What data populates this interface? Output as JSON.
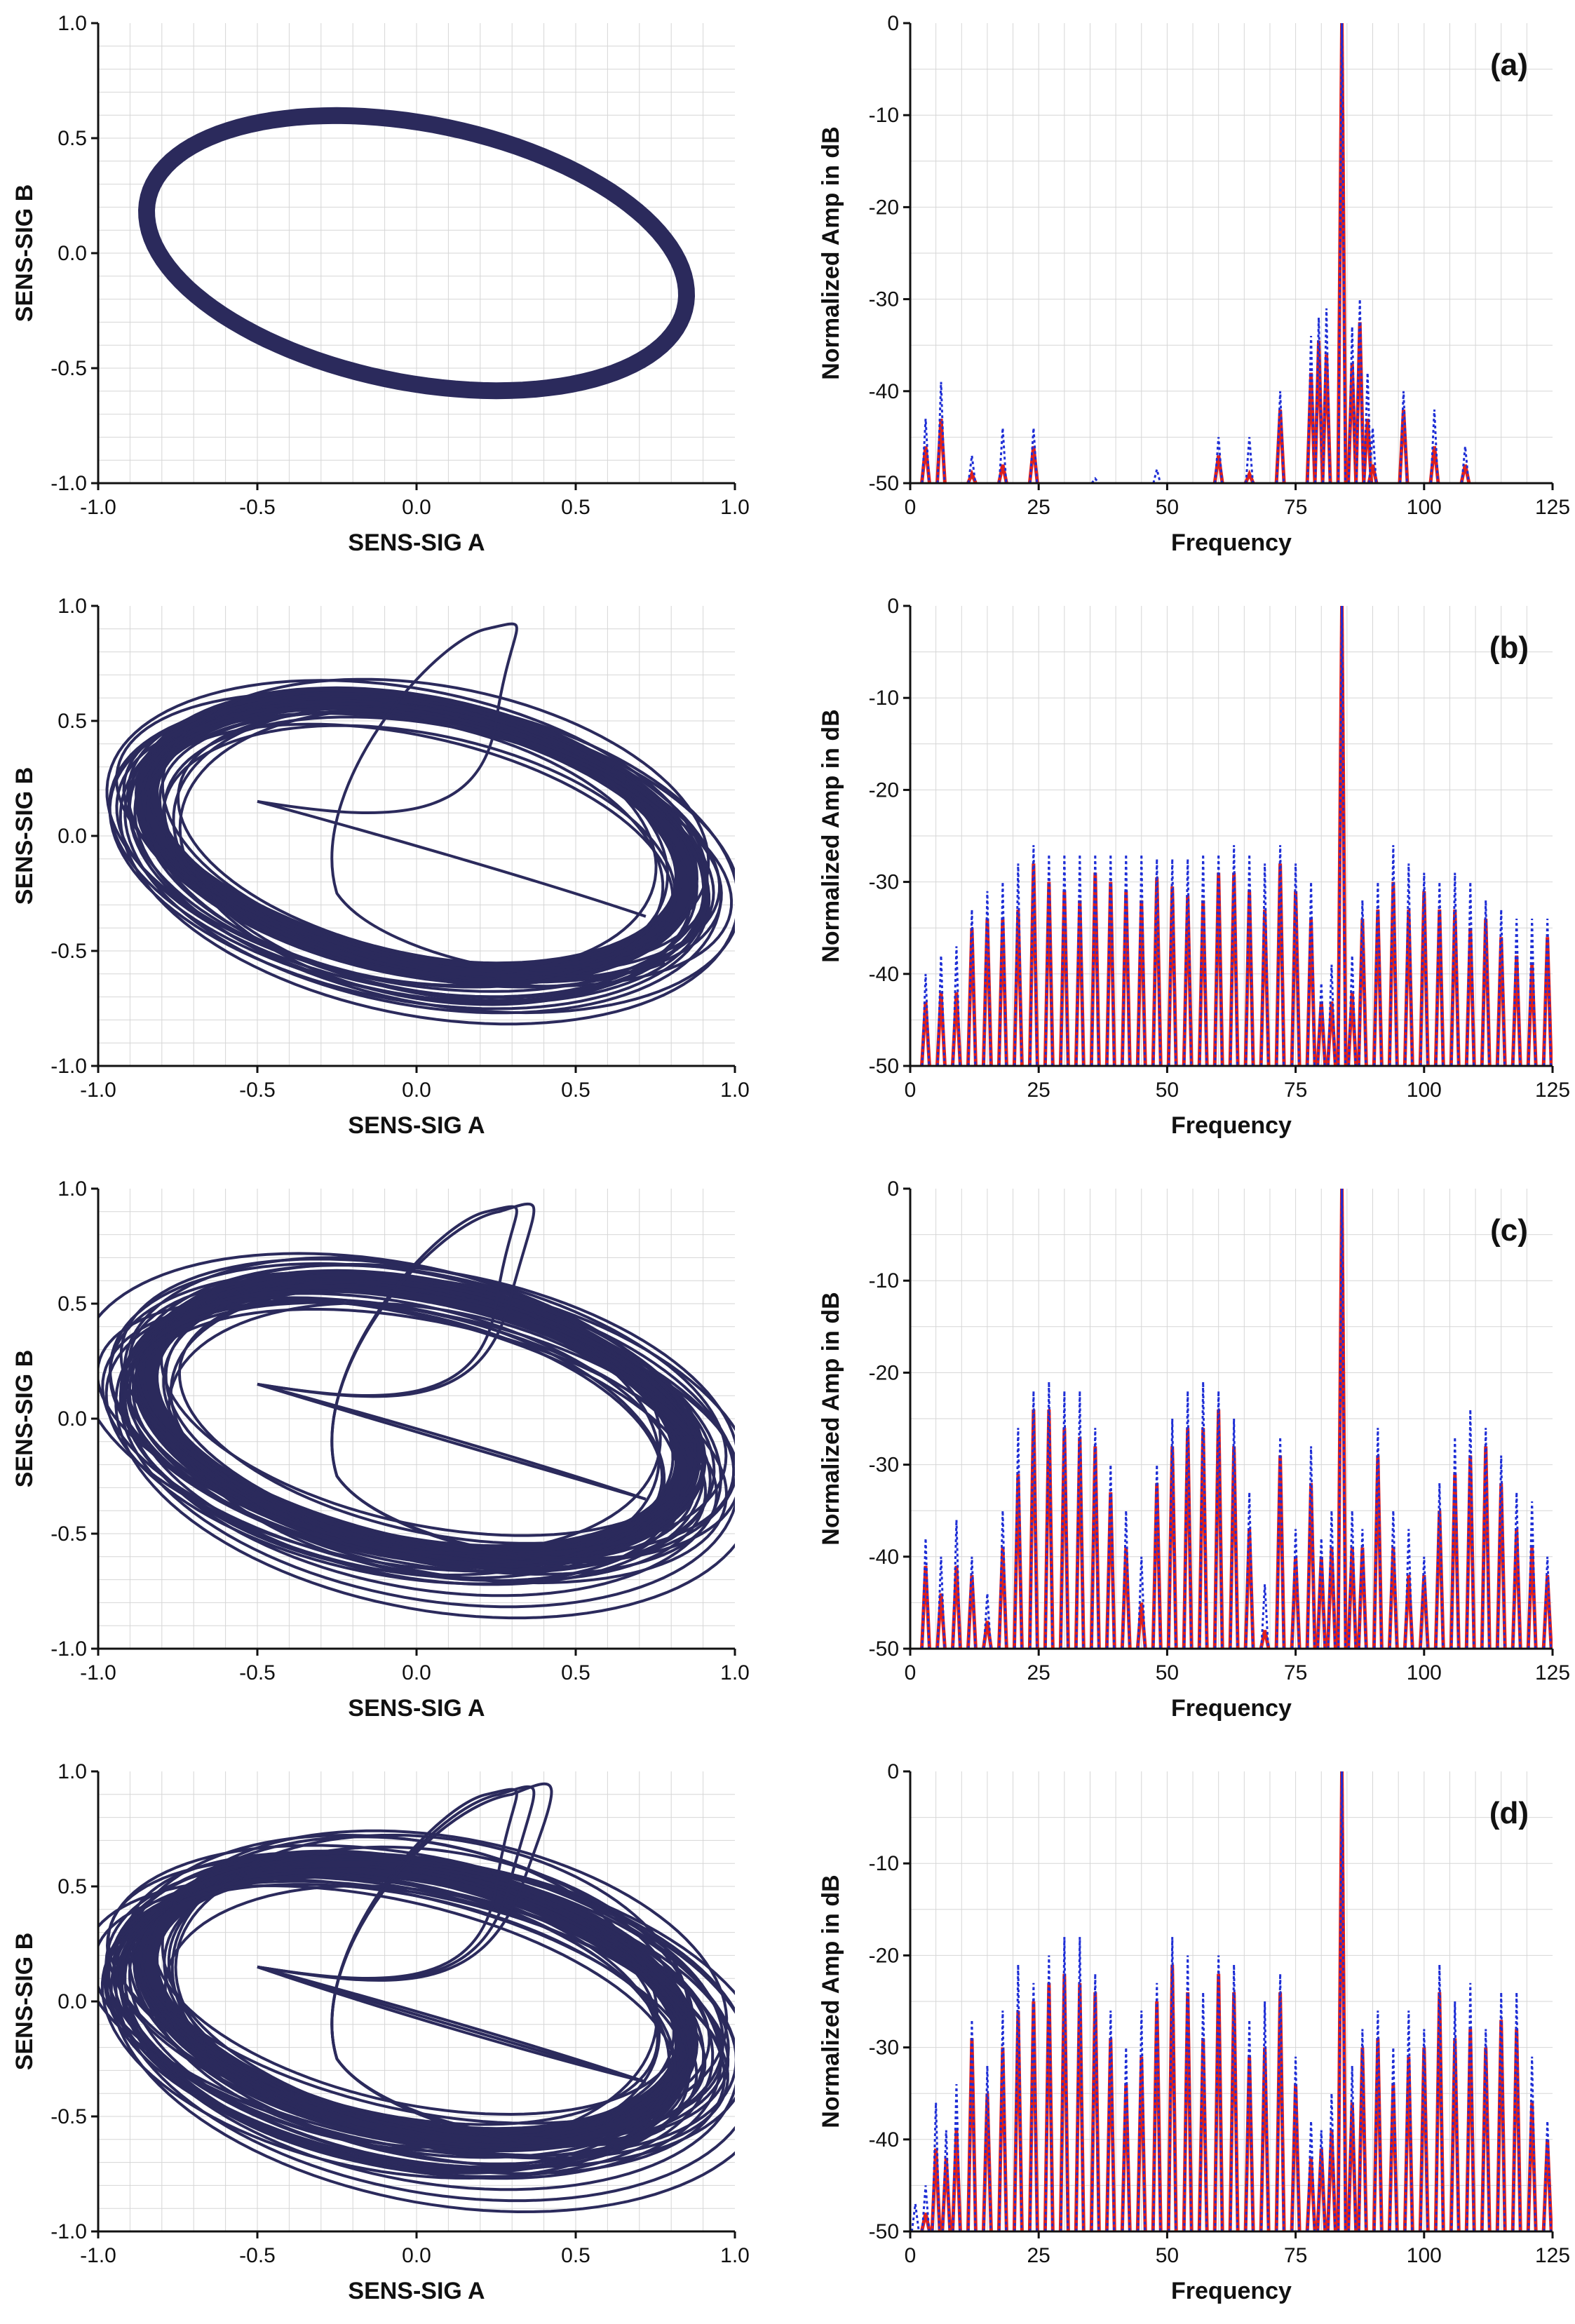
{
  "figure": {
    "description_label": "Phase portraits and normalized spectra"
  },
  "colors": {
    "portrait": "#2b2a5c",
    "spectrum_main": "#e0201c",
    "spectrum_ref": "#1f2fd6",
    "grid": "#d6d6d6",
    "axis": "#111111"
  },
  "chart_data": [
    {
      "type": "phase_portrait",
      "row": 0,
      "xlabel": "SENS-SIG A",
      "ylabel": "SENS-SIG B",
      "xlim": [
        -1.0,
        1.0
      ],
      "ylim": [
        -1.0,
        1.0
      ],
      "xticks": [
        "-1.0",
        "-0.5",
        "0.0",
        "0.5",
        "1.0"
      ],
      "yticks": [
        "-1.0",
        "-0.5",
        "0.0",
        "0.5",
        "1.0"
      ],
      "ellipse": {
        "center": [
          0,
          0
        ],
        "a": 0.88,
        "b": 0.55,
        "angle_deg": -20
      },
      "loop_count": 1,
      "transient": false
    },
    {
      "type": "spectrum",
      "row": 0,
      "label": "(a)",
      "xlabel": "Frequency",
      "ylabel": "Normalized Amp in dB",
      "xlim": [
        0,
        125
      ],
      "ylim": [
        -50,
        0
      ],
      "xticks": [
        "0",
        "25",
        "50",
        "75",
        "100",
        "125"
      ],
      "yticks": [
        "0",
        "-10",
        "-20",
        "-30",
        "-40",
        "-50"
      ],
      "peaks": [
        [
          3,
          -43
        ],
        [
          6,
          -39
        ],
        [
          12,
          -47
        ],
        [
          18,
          -44
        ],
        [
          24,
          -44
        ],
        [
          36,
          -49.5
        ],
        [
          48,
          -48.5
        ],
        [
          60,
          -45
        ],
        [
          66,
          -45
        ],
        [
          72,
          -40
        ],
        [
          78,
          -34
        ],
        [
          79.5,
          -32
        ],
        [
          81,
          -31
        ],
        [
          84,
          0
        ],
        [
          86,
          -33
        ],
        [
          87.5,
          -30
        ],
        [
          89,
          -38
        ],
        [
          90,
          -44
        ],
        [
          96,
          -40
        ],
        [
          102,
          -42
        ],
        [
          108,
          -46
        ]
      ]
    },
    {
      "type": "phase_portrait",
      "row": 1,
      "xlabel": "SENS-SIG A",
      "ylabel": "SENS-SIG B",
      "xlim": [
        -1.0,
        1.0
      ],
      "ylim": [
        -1.0,
        1.0
      ],
      "xticks": [
        "-1.0",
        "-0.5",
        "0.0",
        "0.5",
        "1.0"
      ],
      "yticks": [
        "-1.0",
        "-0.5",
        "0.0",
        "0.5",
        "1.0"
      ],
      "ellipse": {
        "center": [
          0,
          0
        ],
        "a": 0.88,
        "b": 0.55,
        "angle_deg": -20
      },
      "loop_count": 22,
      "transient": true
    },
    {
      "type": "spectrum",
      "row": 1,
      "label": "(b)",
      "xlabel": "Frequency",
      "ylabel": "Normalized Amp in dB",
      "xlim": [
        0,
        125
      ],
      "ylim": [
        -50,
        0
      ],
      "xticks": [
        "0",
        "25",
        "50",
        "75",
        "100",
        "125"
      ],
      "yticks": [
        "0",
        "-10",
        "-20",
        "-30",
        "-40",
        "-50"
      ],
      "peaks": [
        [
          3,
          -40
        ],
        [
          6,
          -38
        ],
        [
          9,
          -37
        ],
        [
          12,
          -33
        ],
        [
          15,
          -31
        ],
        [
          18,
          -30
        ],
        [
          21,
          -28
        ],
        [
          24,
          -26
        ],
        [
          27,
          -27
        ],
        [
          30,
          -27
        ],
        [
          33,
          -27
        ],
        [
          36,
          -27
        ],
        [
          39,
          -27
        ],
        [
          42,
          -27
        ],
        [
          45,
          -27
        ],
        [
          48,
          -27.5
        ],
        [
          51,
          -27.5
        ],
        [
          54,
          -27.5
        ],
        [
          57,
          -27
        ],
        [
          60,
          -27
        ],
        [
          63,
          -26
        ],
        [
          66,
          -27
        ],
        [
          69,
          -28
        ],
        [
          72,
          -26
        ],
        [
          75,
          -28
        ],
        [
          78,
          -30
        ],
        [
          80,
          -41
        ],
        [
          82,
          -39
        ],
        [
          84,
          0
        ],
        [
          86,
          -38
        ],
        [
          88,
          -32
        ],
        [
          91,
          -30
        ],
        [
          94,
          -26
        ],
        [
          97,
          -28
        ],
        [
          100,
          -29
        ],
        [
          103,
          -30
        ],
        [
          106,
          -29
        ],
        [
          109,
          -30
        ],
        [
          112,
          -32
        ],
        [
          115,
          -33
        ],
        [
          118,
          -34
        ],
        [
          121,
          -34
        ],
        [
          124,
          -34
        ]
      ]
    },
    {
      "type": "phase_portrait",
      "row": 2,
      "xlabel": "SENS-SIG A",
      "ylabel": "SENS-SIG B",
      "xlim": [
        -1.0,
        1.0
      ],
      "ylim": [
        -1.0,
        1.0
      ],
      "xticks": [
        "-1.0",
        "-0.5",
        "0.0",
        "0.5",
        "1.0"
      ],
      "yticks": [
        "-1.0",
        "-0.5",
        "0.0",
        "0.5",
        "1.0"
      ],
      "ellipse": {
        "center": [
          0,
          0
        ],
        "a": 0.88,
        "b": 0.55,
        "angle_deg": -20
      },
      "loop_count": 26,
      "transient": true
    },
    {
      "type": "spectrum",
      "row": 2,
      "label": "(c)",
      "xlabel": "Frequency",
      "ylabel": "Normalized Amp in dB",
      "xlim": [
        0,
        125
      ],
      "ylim": [
        -50,
        0
      ],
      "xticks": [
        "0",
        "25",
        "50",
        "75",
        "100",
        "125"
      ],
      "yticks": [
        "0",
        "-10",
        "-20",
        "-30",
        "-40",
        "-50"
      ],
      "peaks": [
        [
          3,
          -38
        ],
        [
          6,
          -40
        ],
        [
          9,
          -36
        ],
        [
          12,
          -40
        ],
        [
          15,
          -44
        ],
        [
          18,
          -35
        ],
        [
          21,
          -26
        ],
        [
          24,
          -22
        ],
        [
          27,
          -21
        ],
        [
          30,
          -22
        ],
        [
          33,
          -22
        ],
        [
          36,
          -26
        ],
        [
          39,
          -30
        ],
        [
          42,
          -35
        ],
        [
          45,
          -40
        ],
        [
          48,
          -30
        ],
        [
          51,
          -25
        ],
        [
          54,
          -22
        ],
        [
          57,
          -21
        ],
        [
          60,
          -22
        ],
        [
          63,
          -25
        ],
        [
          66,
          -33
        ],
        [
          69,
          -43
        ],
        [
          72,
          -27
        ],
        [
          75,
          -37
        ],
        [
          78,
          -28
        ],
        [
          80,
          -38
        ],
        [
          82,
          -35
        ],
        [
          84,
          0
        ],
        [
          86,
          -35
        ],
        [
          88,
          -37
        ],
        [
          91,
          -26
        ],
        [
          94,
          -35
        ],
        [
          97,
          -37
        ],
        [
          100,
          -40
        ],
        [
          103,
          -32
        ],
        [
          106,
          -27
        ],
        [
          109,
          -24
        ],
        [
          112,
          -26
        ],
        [
          115,
          -29
        ],
        [
          118,
          -33
        ],
        [
          121,
          -34
        ],
        [
          124,
          -40
        ]
      ]
    },
    {
      "type": "phase_portrait",
      "row": 3,
      "xlabel": "SENS-SIG A",
      "ylabel": "SENS-SIG B",
      "xlim": [
        -1.0,
        1.0
      ],
      "ylim": [
        -1.0,
        1.0
      ],
      "xticks": [
        "-1.0",
        "-0.5",
        "0.0",
        "0.5",
        "1.0"
      ],
      "yticks": [
        "-1.0",
        "-0.5",
        "0.0",
        "0.5",
        "1.0"
      ],
      "ellipse": {
        "center": [
          0,
          0
        ],
        "a": 0.88,
        "b": 0.55,
        "angle_deg": -20
      },
      "loop_count": 30,
      "transient": true
    },
    {
      "type": "spectrum",
      "row": 3,
      "label": "(d)",
      "xlabel": "Frequency",
      "ylabel": "Normalized Amp in dB",
      "xlim": [
        0,
        125
      ],
      "ylim": [
        -50,
        0
      ],
      "xticks": [
        "0",
        "25",
        "50",
        "75",
        "100",
        "125"
      ],
      "yticks": [
        "0",
        "-10",
        "-20",
        "-30",
        "-40",
        "-50"
      ],
      "peaks": [
        [
          1,
          -47
        ],
        [
          3,
          -45
        ],
        [
          5,
          -36
        ],
        [
          7,
          -39
        ],
        [
          9,
          -34
        ],
        [
          12,
          -27
        ],
        [
          15,
          -32
        ],
        [
          18,
          -26
        ],
        [
          21,
          -21
        ],
        [
          24,
          -23
        ],
        [
          27,
          -20
        ],
        [
          30,
          -18
        ],
        [
          33,
          -18
        ],
        [
          36,
          -22
        ],
        [
          39,
          -26
        ],
        [
          42,
          -30
        ],
        [
          45,
          -26
        ],
        [
          48,
          -23
        ],
        [
          51,
          -18
        ],
        [
          54,
          -20
        ],
        [
          57,
          -24
        ],
        [
          60,
          -20
        ],
        [
          63,
          -21
        ],
        [
          66,
          -27
        ],
        [
          69,
          -25
        ],
        [
          72,
          -22
        ],
        [
          75,
          -31
        ],
        [
          78,
          -38
        ],
        [
          80,
          -39
        ],
        [
          82,
          -35
        ],
        [
          84,
          0
        ],
        [
          86,
          -32
        ],
        [
          88,
          -28
        ],
        [
          91,
          -26
        ],
        [
          94,
          -30
        ],
        [
          97,
          -26
        ],
        [
          100,
          -28
        ],
        [
          103,
          -21
        ],
        [
          106,
          -25
        ],
        [
          109,
          -23
        ],
        [
          112,
          -28
        ],
        [
          115,
          -24
        ],
        [
          118,
          -24
        ],
        [
          121,
          -31
        ],
        [
          124,
          -38
        ]
      ]
    }
  ]
}
